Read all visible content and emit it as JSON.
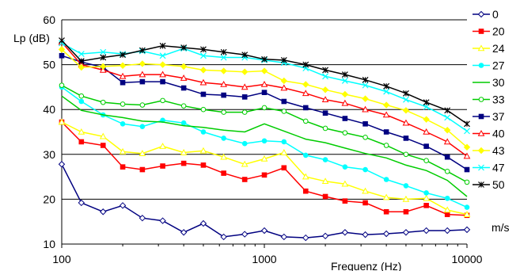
{
  "chart_data": {
    "type": "line",
    "title": "",
    "ylabel": "Lp (dB)",
    "xlabel": "Frequenz (Hz)",
    "legend_title": "m/s",
    "legend_position": "right",
    "xscale": "log",
    "xlim": [
      100,
      10000
    ],
    "ylim": [
      10,
      60
    ],
    "grid": "horizontal",
    "x_ticks": [
      "100",
      "1000",
      "10000"
    ],
    "y_ticks": [
      "10",
      "20",
      "30",
      "40",
      "50",
      "60"
    ],
    "x": [
      100,
      125,
      160,
      200,
      250,
      315,
      400,
      500,
      630,
      800,
      1000,
      1250,
      1600,
      2000,
      2500,
      3150,
      4000,
      5000,
      6300,
      8000,
      10000
    ],
    "series": [
      {
        "name": "0",
        "color": "#000080",
        "marker": "diamond-open",
        "values": [
          27.8,
          19.2,
          17.2,
          18.6,
          15.8,
          15.2,
          12.6,
          14.6,
          11.6,
          12.2,
          13.0,
          11.6,
          11.4,
          11.8,
          12.6,
          12.1,
          12.3,
          12.6,
          13.0,
          13.0,
          13.2
        ]
      },
      {
        "name": "20",
        "color": "#ff0000",
        "marker": "square-filled",
        "values": [
          37.2,
          32.8,
          32.0,
          27.2,
          26.6,
          27.4,
          28.0,
          27.6,
          25.8,
          24.4,
          25.4,
          27.0,
          21.8,
          20.6,
          19.6,
          19.2,
          17.2,
          17.2,
          18.6,
          16.6,
          16.4
        ]
      },
      {
        "name": "24",
        "color": "#ffff00",
        "marker": "triangle-open",
        "values": [
          37.2,
          35.0,
          34.0,
          30.6,
          30.2,
          31.8,
          30.4,
          30.8,
          29.4,
          27.8,
          29.0,
          30.4,
          25.0,
          24.0,
          23.4,
          21.8,
          20.4,
          20.0,
          20.2,
          17.6,
          16.6
        ]
      },
      {
        "name": "27",
        "color": "#00ffff",
        "marker": "circle-filled",
        "values": [
          45.0,
          41.8,
          38.8,
          36.8,
          36.2,
          37.6,
          37.0,
          35.0,
          33.6,
          32.4,
          33.0,
          32.8,
          29.8,
          28.8,
          27.2,
          26.6,
          24.4,
          23.0,
          21.4,
          20.2,
          18.2
        ]
      },
      {
        "name": "30",
        "color": "#00cc00",
        "marker": "none",
        "values": [
          43.0,
          39.8,
          38.8,
          38.2,
          37.4,
          37.2,
          36.4,
          36.0,
          35.4,
          35.0,
          36.8,
          35.2,
          33.4,
          32.6,
          31.4,
          30.2,
          29.2,
          27.6,
          26.4,
          24.2,
          20.6
        ]
      },
      {
        "name": "33",
        "color": "#00cc00",
        "marker": "circle-open",
        "values": [
          45.4,
          43.0,
          41.6,
          41.2,
          41.0,
          42.0,
          40.8,
          40.0,
          39.4,
          39.4,
          40.4,
          39.6,
          37.4,
          35.8,
          34.8,
          33.8,
          32.0,
          30.0,
          28.6,
          26.2,
          23.8
        ]
      },
      {
        "name": "37",
        "color": "#000080",
        "marker": "square-filled",
        "values": [
          52.0,
          50.6,
          49.4,
          46.0,
          46.2,
          46.2,
          44.8,
          43.4,
          43.2,
          42.8,
          43.8,
          41.8,
          40.4,
          39.2,
          38.0,
          36.8,
          35.0,
          33.6,
          31.8,
          29.4,
          26.6
        ]
      },
      {
        "name": "40",
        "color": "#ff0000",
        "marker": "triangle-open",
        "values": [
          55.0,
          50.0,
          48.8,
          47.4,
          47.8,
          47.8,
          47.0,
          46.0,
          45.6,
          45.0,
          45.6,
          44.8,
          43.6,
          42.2,
          41.4,
          40.0,
          38.8,
          37.0,
          35.0,
          32.8,
          29.6
        ]
      },
      {
        "name": "43",
        "color": "#ffff00",
        "marker": "diamond-filled",
        "values": [
          53.4,
          49.4,
          49.6,
          49.8,
          50.2,
          50.0,
          49.6,
          48.8,
          48.6,
          48.4,
          48.6,
          46.4,
          45.6,
          44.4,
          43.4,
          42.4,
          41.0,
          39.8,
          37.8,
          35.4,
          31.6
        ]
      },
      {
        "name": "47",
        "color": "#00ffff",
        "marker": "x",
        "values": [
          54.8,
          52.4,
          52.8,
          52.4,
          53.0,
          52.0,
          53.6,
          52.0,
          51.6,
          51.6,
          51.0,
          50.4,
          49.2,
          47.4,
          46.4,
          45.4,
          44.0,
          42.2,
          40.6,
          38.2,
          35.2
        ]
      },
      {
        "name": "50",
        "color": "#000000",
        "marker": "star",
        "values": [
          55.4,
          50.8,
          51.6,
          52.2,
          53.2,
          54.2,
          53.8,
          53.4,
          52.8,
          52.2,
          51.2,
          51.0,
          50.0,
          48.8,
          47.8,
          46.6,
          45.2,
          43.6,
          41.6,
          39.8,
          36.8
        ]
      }
    ]
  }
}
